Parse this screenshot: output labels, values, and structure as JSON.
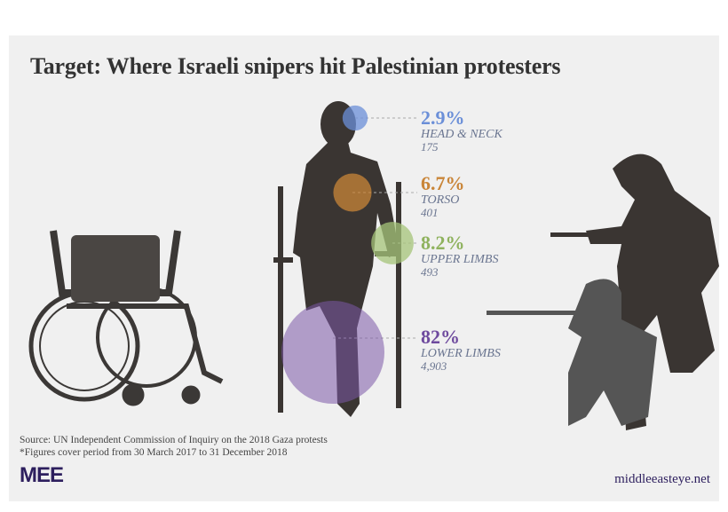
{
  "title": "Target: Where Israeli snipers hit Palestinian protesters",
  "chart_data": {
    "type": "scatter",
    "title": "Target: Where Israeli snipers hit Palestinian protesters",
    "categories": [
      "HEAD & NECK",
      "TORSO",
      "UPPER LIMBS",
      "LOWER LIMBS"
    ],
    "values": [
      2.9,
      6.7,
      8.2,
      82
    ],
    "value_labels": [
      "2.9%",
      "6.7%",
      "8.2%",
      "82%"
    ],
    "counts": [
      "175",
      "401",
      "493",
      "4,903"
    ],
    "colors": [
      "#6b8fd8",
      "#c98538",
      "#a5c47a",
      "#7b58a8"
    ]
  },
  "footer": {
    "source": "Source: UN Independent Commission of Inquiry on the 2018 Gaza protests",
    "note": "*Figures cover period from 30 March 2017 to 31 December 2018",
    "logo": "MEE",
    "site": "middleeasteye.net"
  }
}
